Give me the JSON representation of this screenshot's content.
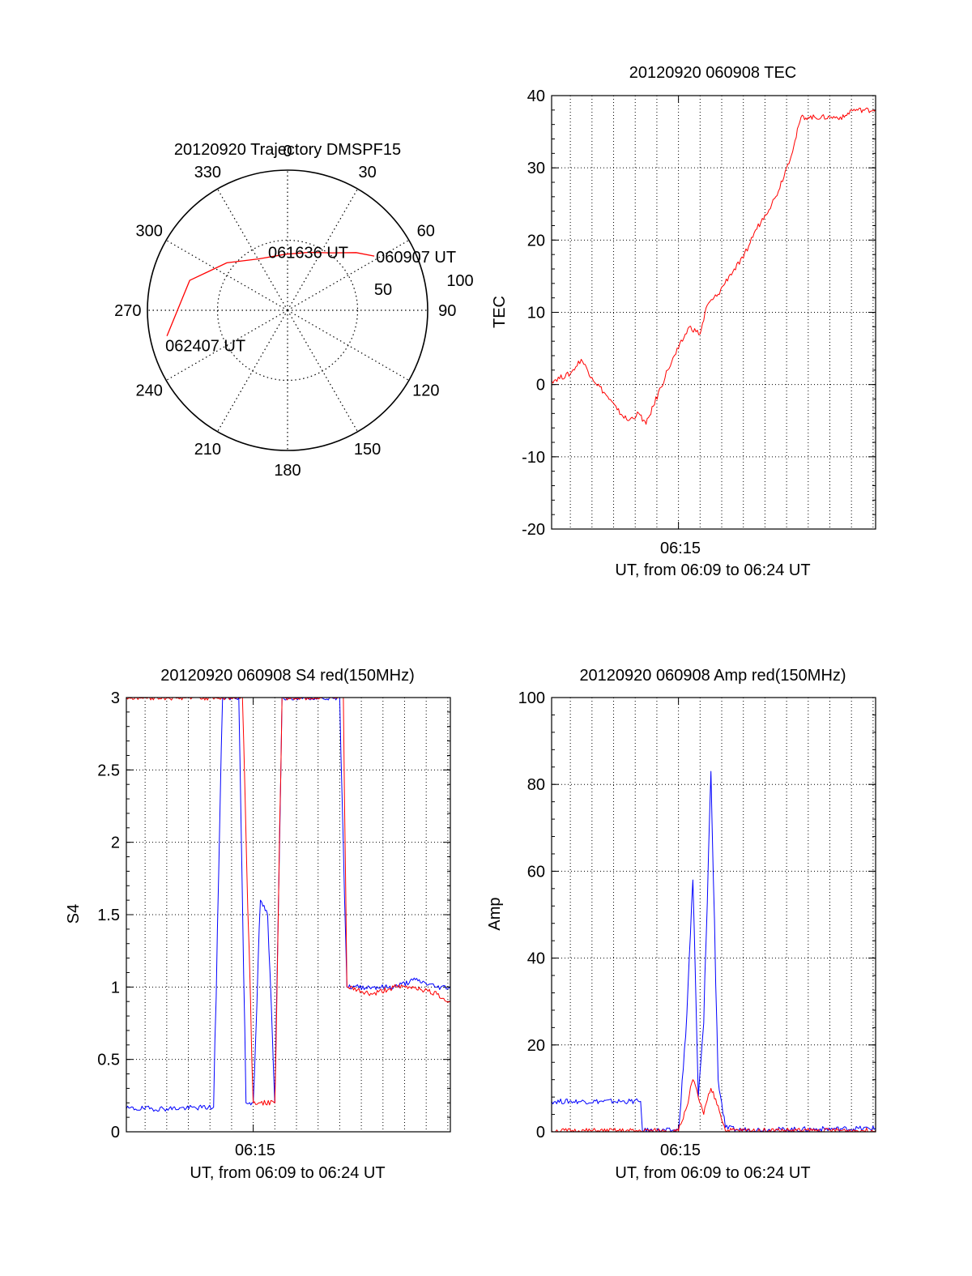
{
  "polar": {
    "title": "20120920 Trajectory DMSPF15",
    "azimuth_labels": [
      {
        "az": 0,
        "text": "0"
      },
      {
        "az": 30,
        "text": "30"
      },
      {
        "az": 60,
        "text": "60"
      },
      {
        "az": 90,
        "text": "90"
      },
      {
        "az": 120,
        "text": "120"
      },
      {
        "az": 150,
        "text": "150"
      },
      {
        "az": 180,
        "text": "180"
      },
      {
        "az": 210,
        "text": "210"
      },
      {
        "az": 240,
        "text": "240"
      },
      {
        "az": 270,
        "text": "270"
      },
      {
        "az": 300,
        "text": "300"
      },
      {
        "az": 330,
        "text": "330"
      }
    ],
    "ring_labels": [
      {
        "value": 50,
        "text": "50"
      },
      {
        "value": 100,
        "text": "100"
      }
    ],
    "track_start_label": "060907 UT",
    "track_mid_label": "061636 UT",
    "track_end_label": "062407 UT",
    "track_color": "#ff0000"
  },
  "chart_data": [
    {
      "type": "polar-line",
      "title": "20120920 Trajectory DMSPF15",
      "r_range": [
        0,
        100
      ],
      "theta_unit": "degrees azimuth, clockwise from 0 at top",
      "series": [
        {
          "color": "#ff0000",
          "points": [
            {
              "az": 58,
              "r": 73
            },
            {
              "az": 50,
              "r": 64
            },
            {
              "az": 38,
              "r": 52
            },
            {
              "az": 20,
              "r": 44
            },
            {
              "az": 358,
              "r": 40
            },
            {
              "az": 331,
              "r": 42
            },
            {
              "az": 308,
              "r": 55
            },
            {
              "az": 287,
              "r": 73
            },
            {
              "az": 258,
              "r": 88
            }
          ]
        }
      ],
      "annotations": [
        {
          "text": "060907 UT",
          "az": 58,
          "r": 73
        },
        {
          "text": "061636 UT",
          "az": 20,
          "r": 44
        },
        {
          "text": "062407 UT",
          "az": 258,
          "r": 88
        }
      ]
    },
    {
      "type": "line",
      "title": "20120920 060908 TEC",
      "xlabel": "UT, from 06:09 to 06:24 UT",
      "ylabel": "TEC",
      "xlim": [
        "06:09:08",
        "06:24:07"
      ],
      "ylim": [
        -20,
        40
      ],
      "yticks": [
        "-20",
        "-10",
        "0",
        "10",
        "20",
        "30",
        "40"
      ],
      "xtick": "06:15",
      "grid": true,
      "series": [
        {
          "color": "#ff0000",
          "x": [
            "06:09:08",
            "06:10:00",
            "06:10:30",
            "06:11:00",
            "06:11:40",
            "06:12:10",
            "06:12:40",
            "06:13:10",
            "06:13:30",
            "06:13:50",
            "06:14:30",
            "06:15:00",
            "06:15:30",
            "06:16:00",
            "06:16:20",
            "06:16:50",
            "06:17:20",
            "06:18:00",
            "06:18:30",
            "06:19:00",
            "06:19:30",
            "06:20:00",
            "06:20:20",
            "06:20:40",
            "06:21:00",
            "06:22:00",
            "06:22:40",
            "06:23:00",
            "06:24:00",
            "06:24:07"
          ],
          "y": [
            0.5,
            1.5,
            3.5,
            1.0,
            -1.5,
            -3.5,
            -5.0,
            -4.0,
            -5.5,
            -3.0,
            2.0,
            5.0,
            8.0,
            7.0,
            11.0,
            12.5,
            15.0,
            17.5,
            21.0,
            23.5,
            26.0,
            30.0,
            33.0,
            37.0,
            37.0,
            37.0,
            37.0,
            38.0,
            38.0,
            38.0
          ]
        }
      ]
    },
    {
      "type": "line",
      "title": "20120920 060908 S4 red(150MHz)",
      "xlabel": "UT, from 06:09 to 06:24 UT",
      "ylabel": "S4",
      "xlim": [
        "06:09:08",
        "06:24:07"
      ],
      "ylim": [
        0,
        3
      ],
      "yticks": [
        "0",
        "0.5",
        "1",
        "1.5",
        "2",
        "2.5",
        "3"
      ],
      "xtick": "06:15",
      "grid": true,
      "series": [
        {
          "color": "#0000ff",
          "x": [
            "06:09:08",
            "06:11:00",
            "06:13:10",
            "06:13:35",
            "06:14:20",
            "06:14:40",
            "06:15:00",
            "06:15:20",
            "06:15:40",
            "06:16:00",
            "06:16:20",
            "06:17:20",
            "06:18:00",
            "06:19:00",
            "06:19:20",
            "06:20:30",
            "06:21:30",
            "06:22:30",
            "06:23:30",
            "06:24:07"
          ],
          "y": [
            0.16,
            0.16,
            0.17,
            3.0,
            3.0,
            0.2,
            0.2,
            1.6,
            1.5,
            0.2,
            3.0,
            3.0,
            3.0,
            3.0,
            1.0,
            1.0,
            1.0,
            1.05,
            1.0,
            1.0
          ]
        },
        {
          "color": "#ff0000",
          "x": [
            "06:09:08",
            "06:10:30",
            "06:12:00",
            "06:13:00",
            "06:14:30",
            "06:15:00",
            "06:15:20",
            "06:16:00",
            "06:16:20",
            "06:17:30",
            "06:18:30",
            "06:19:10",
            "06:19:20",
            "06:20:30",
            "06:21:30",
            "06:22:30",
            "06:23:30",
            "06:24:07"
          ],
          "y": [
            3.0,
            3.0,
            3.0,
            3.0,
            3.0,
            0.2,
            0.2,
            0.2,
            3.0,
            3.0,
            3.0,
            3.0,
            1.0,
            0.95,
            1.0,
            1.0,
            0.95,
            0.9
          ]
        }
      ]
    },
    {
      "type": "line",
      "title": "20120920 060908 Amp red(150MHz)",
      "xlabel": "UT, from 06:09 to 06:24 UT",
      "ylabel": "Amp",
      "xlim": [
        "06:09:08",
        "06:24:07"
      ],
      "ylim": [
        0,
        100
      ],
      "yticks": [
        "0",
        "20",
        "40",
        "60",
        "80",
        "100"
      ],
      "xtick": "06:15",
      "grid": true,
      "series": [
        {
          "color": "#0000ff",
          "x": [
            "06:09:08",
            "06:10:30",
            "06:12:00",
            "06:13:15",
            "06:13:20",
            "06:15:00",
            "06:15:20",
            "06:15:40",
            "06:15:55",
            "06:16:10",
            "06:16:30",
            "06:16:50",
            "06:17:10",
            "06:17:40",
            "06:20:00",
            "06:24:07"
          ],
          "y": [
            7,
            7,
            7,
            7,
            0.3,
            0.3,
            22,
            58,
            8,
            25,
            83,
            12,
            1,
            0.5,
            0.5,
            0.8
          ]
        },
        {
          "color": "#ff0000",
          "x": [
            "06:09:08",
            "06:13:15",
            "06:15:00",
            "06:15:20",
            "06:15:40",
            "06:16:10",
            "06:16:30",
            "06:16:50",
            "06:17:10",
            "06:24:07"
          ],
          "y": [
            0.2,
            0.2,
            0.2,
            5,
            12,
            4,
            10,
            6,
            0.3,
            0.3
          ]
        }
      ]
    }
  ]
}
